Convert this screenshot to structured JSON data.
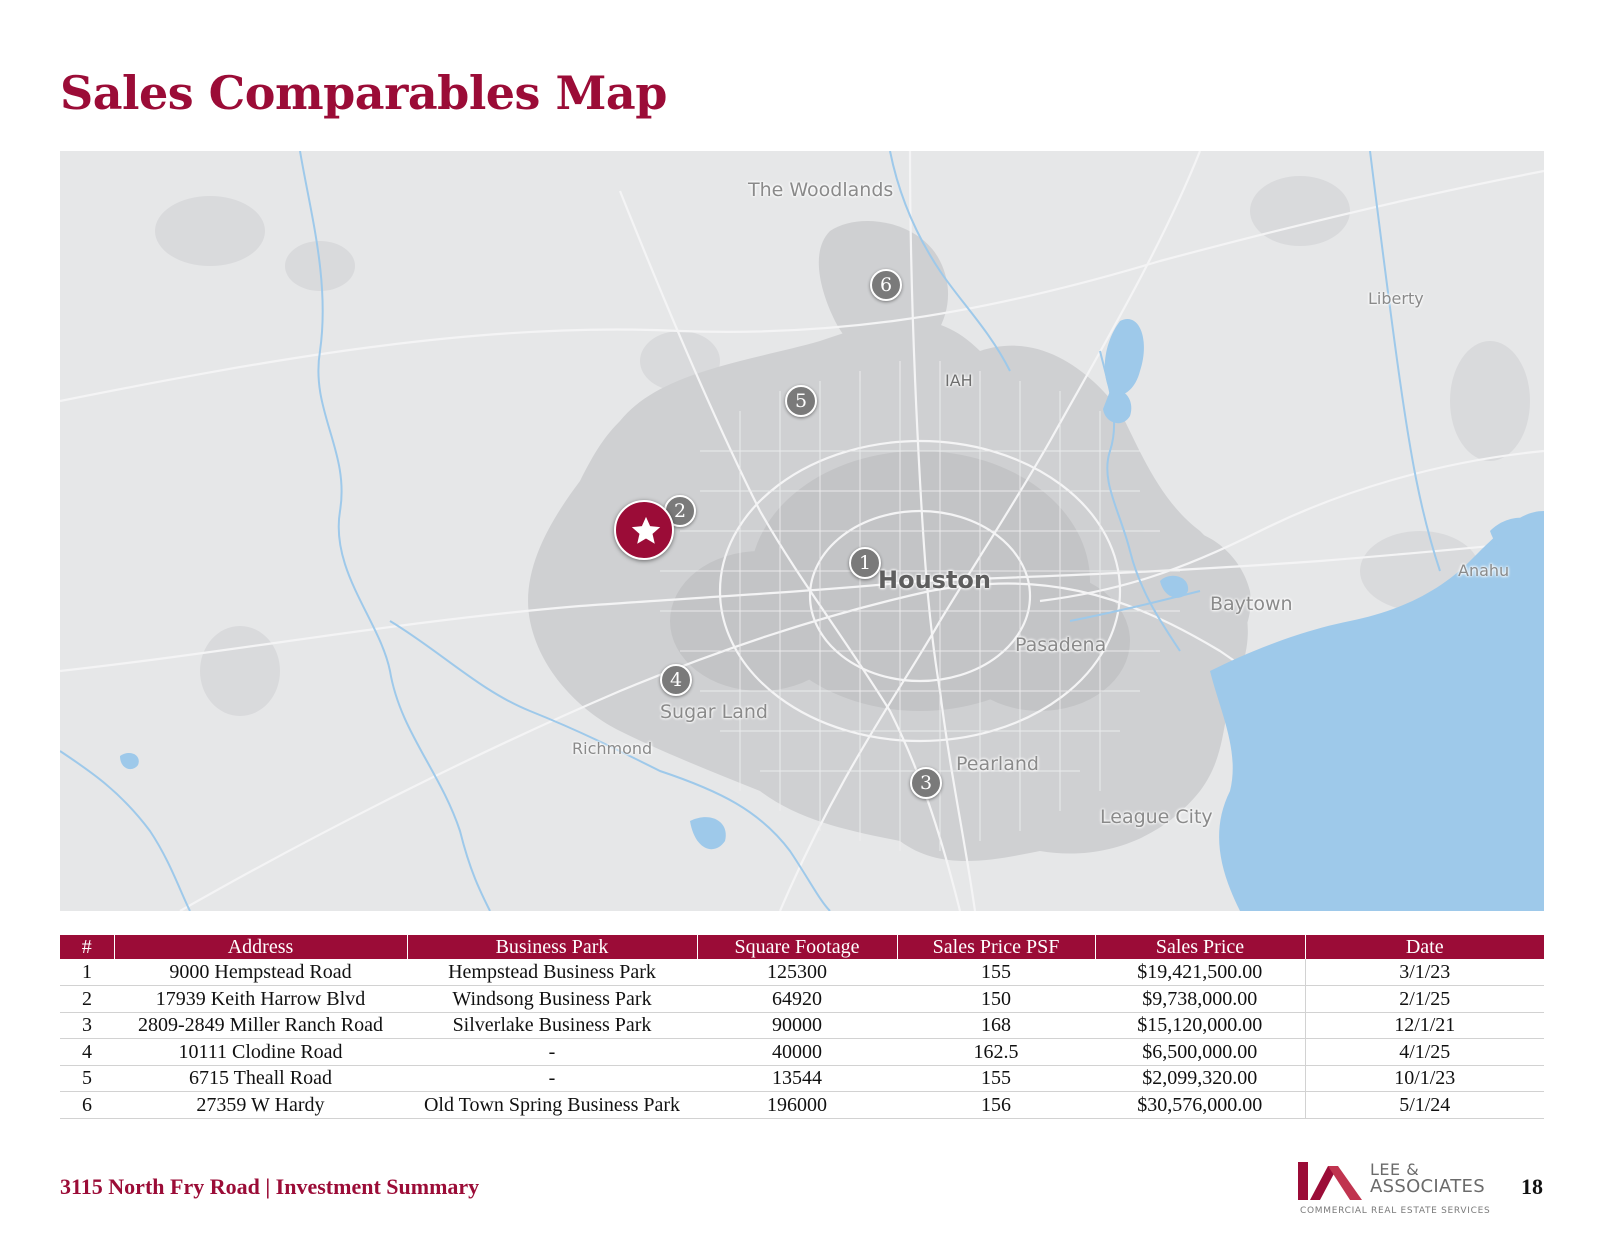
{
  "header": {
    "title": "Sales Comparables Map"
  },
  "map": {
    "labels": {
      "woodlands": "The Woodlands",
      "liberty": "Liberty",
      "iah": "IAH",
      "houston": "Houston",
      "baytown": "Baytown",
      "anahuac": "Anahu",
      "pasadena": "Pasadena",
      "sugar_land": "Sugar Land",
      "richmond": "Richmond",
      "pearland": "Pearland",
      "league_city": "League City"
    },
    "markers": [
      "1",
      "2",
      "3",
      "4",
      "5",
      "6"
    ],
    "subject_marker": "star-icon",
    "colors": {
      "land": "#e6e7e8",
      "urban": "#cfd0d2",
      "water": "#9ec9ea",
      "marker": "#7a7a7a",
      "subject": "#9b0c37"
    }
  },
  "table": {
    "headers": [
      "#",
      "Address",
      "Business Park",
      "Square Footage",
      "Sales Price PSF",
      "Sales Price",
      "Date"
    ],
    "rows": [
      [
        "1",
        "9000 Hempstead Road",
        "Hempstead Business Park",
        "125300",
        "155",
        "$19,421,500.00",
        "3/1/23"
      ],
      [
        "2",
        "17939 Keith Harrow Blvd",
        "Windsong Business Park",
        "64920",
        "150",
        "$9,738,000.00",
        "2/1/25"
      ],
      [
        "3",
        "2809-2849 Miller Ranch Road",
        "Silverlake Business Park",
        "90000",
        "168",
        "$15,120,000.00",
        "12/1/21"
      ],
      [
        "4",
        "10111 Clodine Road",
        "-",
        "40000",
        "162.5",
        "$6,500,000.00",
        "4/1/25"
      ],
      [
        "5",
        "6715 Theall Road",
        "-",
        "13544",
        "155",
        "$2,099,320.00",
        "10/1/23"
      ],
      [
        "6",
        "27359 W Hardy",
        "Old Town Spring Business Park",
        "196000",
        "156",
        "$30,576,000.00",
        "5/1/24"
      ]
    ]
  },
  "footer": {
    "text": "3115 North Fry Road | Investment Summary",
    "page_number": "18",
    "logo": {
      "line1": "LEE &",
      "line2": "ASSOCIATES",
      "tagline": "COMMERCIAL REAL ESTATE SERVICES"
    },
    "brand_color": "#9b0c37"
  }
}
